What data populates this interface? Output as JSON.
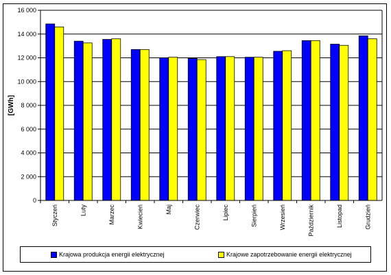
{
  "chart_data": {
    "type": "bar",
    "title": "",
    "xlabel": "",
    "ylabel": "[GWh]",
    "ylim": [
      0,
      16000
    ],
    "yticks": [
      "0",
      "2 000",
      "4 000",
      "6 000",
      "8 000",
      "10 000",
      "12 000",
      "14 000",
      "16 000"
    ],
    "categories": [
      "Styczeń",
      "Luty",
      "Marzec",
      "Kwiecień",
      "Maj",
      "Czerwiec",
      "Lipiec",
      "Sierpień",
      "Wrzesień",
      "Październik",
      "Listopad",
      "Grudzień"
    ],
    "series": [
      {
        "name": "Krajowa produkcja energii elektrycznej",
        "color": "#0000ff",
        "values": [
          14850,
          13400,
          13550,
          12700,
          12000,
          11950,
          12100,
          12050,
          12550,
          13450,
          13150,
          13850
        ]
      },
      {
        "name": "Krajowe zapotrzebowanie energii elektrycznej",
        "color": "#ffff00",
        "values": [
          14600,
          13250,
          13600,
          12700,
          12050,
          11850,
          12100,
          12050,
          12600,
          13450,
          13050,
          13600
        ]
      }
    ],
    "grid": true,
    "legend_position": "bottom"
  }
}
